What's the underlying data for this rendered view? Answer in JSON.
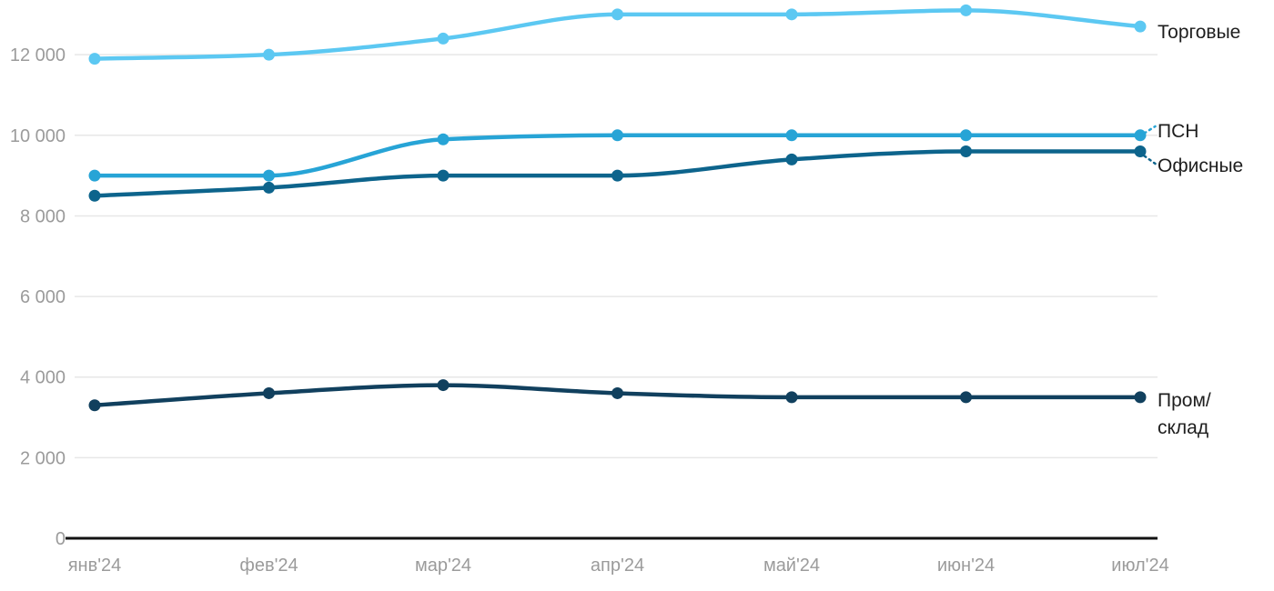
{
  "chart_data": {
    "type": "line",
    "title": "",
    "xlabel": "",
    "ylabel": "",
    "categories": [
      "янв'24",
      "фев'24",
      "мар'24",
      "апр'24",
      "май'24",
      "июн'24",
      "июл'24"
    ],
    "series": [
      {
        "name": "Торговые",
        "slug": "torgovye",
        "color": "#5CC8F2",
        "values": [
          11900,
          12000,
          12400,
          13000,
          13000,
          13100,
          12700
        ],
        "label_lines": [
          "Торговые"
        ]
      },
      {
        "name": "ПСН",
        "slug": "psn",
        "color": "#27A4D6",
        "values": [
          9000,
          9000,
          9900,
          10000,
          10000,
          10000,
          10000
        ],
        "label_lines": [
          "ПСН"
        ]
      },
      {
        "name": "Офисные",
        "slug": "ofisnye",
        "color": "#0D648C",
        "values": [
          8500,
          8700,
          9000,
          9000,
          9400,
          9600,
          9600
        ],
        "label_lines": [
          "Офисные"
        ]
      },
      {
        "name": "Пром/склад",
        "slug": "prom-sklad",
        "color": "#11405E",
        "values": [
          3300,
          3600,
          3800,
          3600,
          3500,
          3500,
          3500
        ],
        "label_lines": [
          "Пром/",
          "склад"
        ]
      }
    ],
    "yticks": [
      {
        "value": 0,
        "label": "0"
      },
      {
        "value": 2000,
        "label": "2 000"
      },
      {
        "value": 4000,
        "label": "4 000"
      },
      {
        "value": 6000,
        "label": "6 000"
      },
      {
        "value": 8000,
        "label": "8 000"
      },
      {
        "value": 10000,
        "label": "10 000"
      },
      {
        "value": 12000,
        "label": "12 000"
      }
    ],
    "ylim": [
      0,
      13300
    ],
    "grid": true,
    "legend_position": "end-of-line-labels",
    "colors": {
      "tick_label": "#9B9B9B",
      "gridline": "#E7E7E7",
      "axis_line": "#111111",
      "series_label_text": "#1E1E1E",
      "background": "#FFFFFF"
    }
  }
}
